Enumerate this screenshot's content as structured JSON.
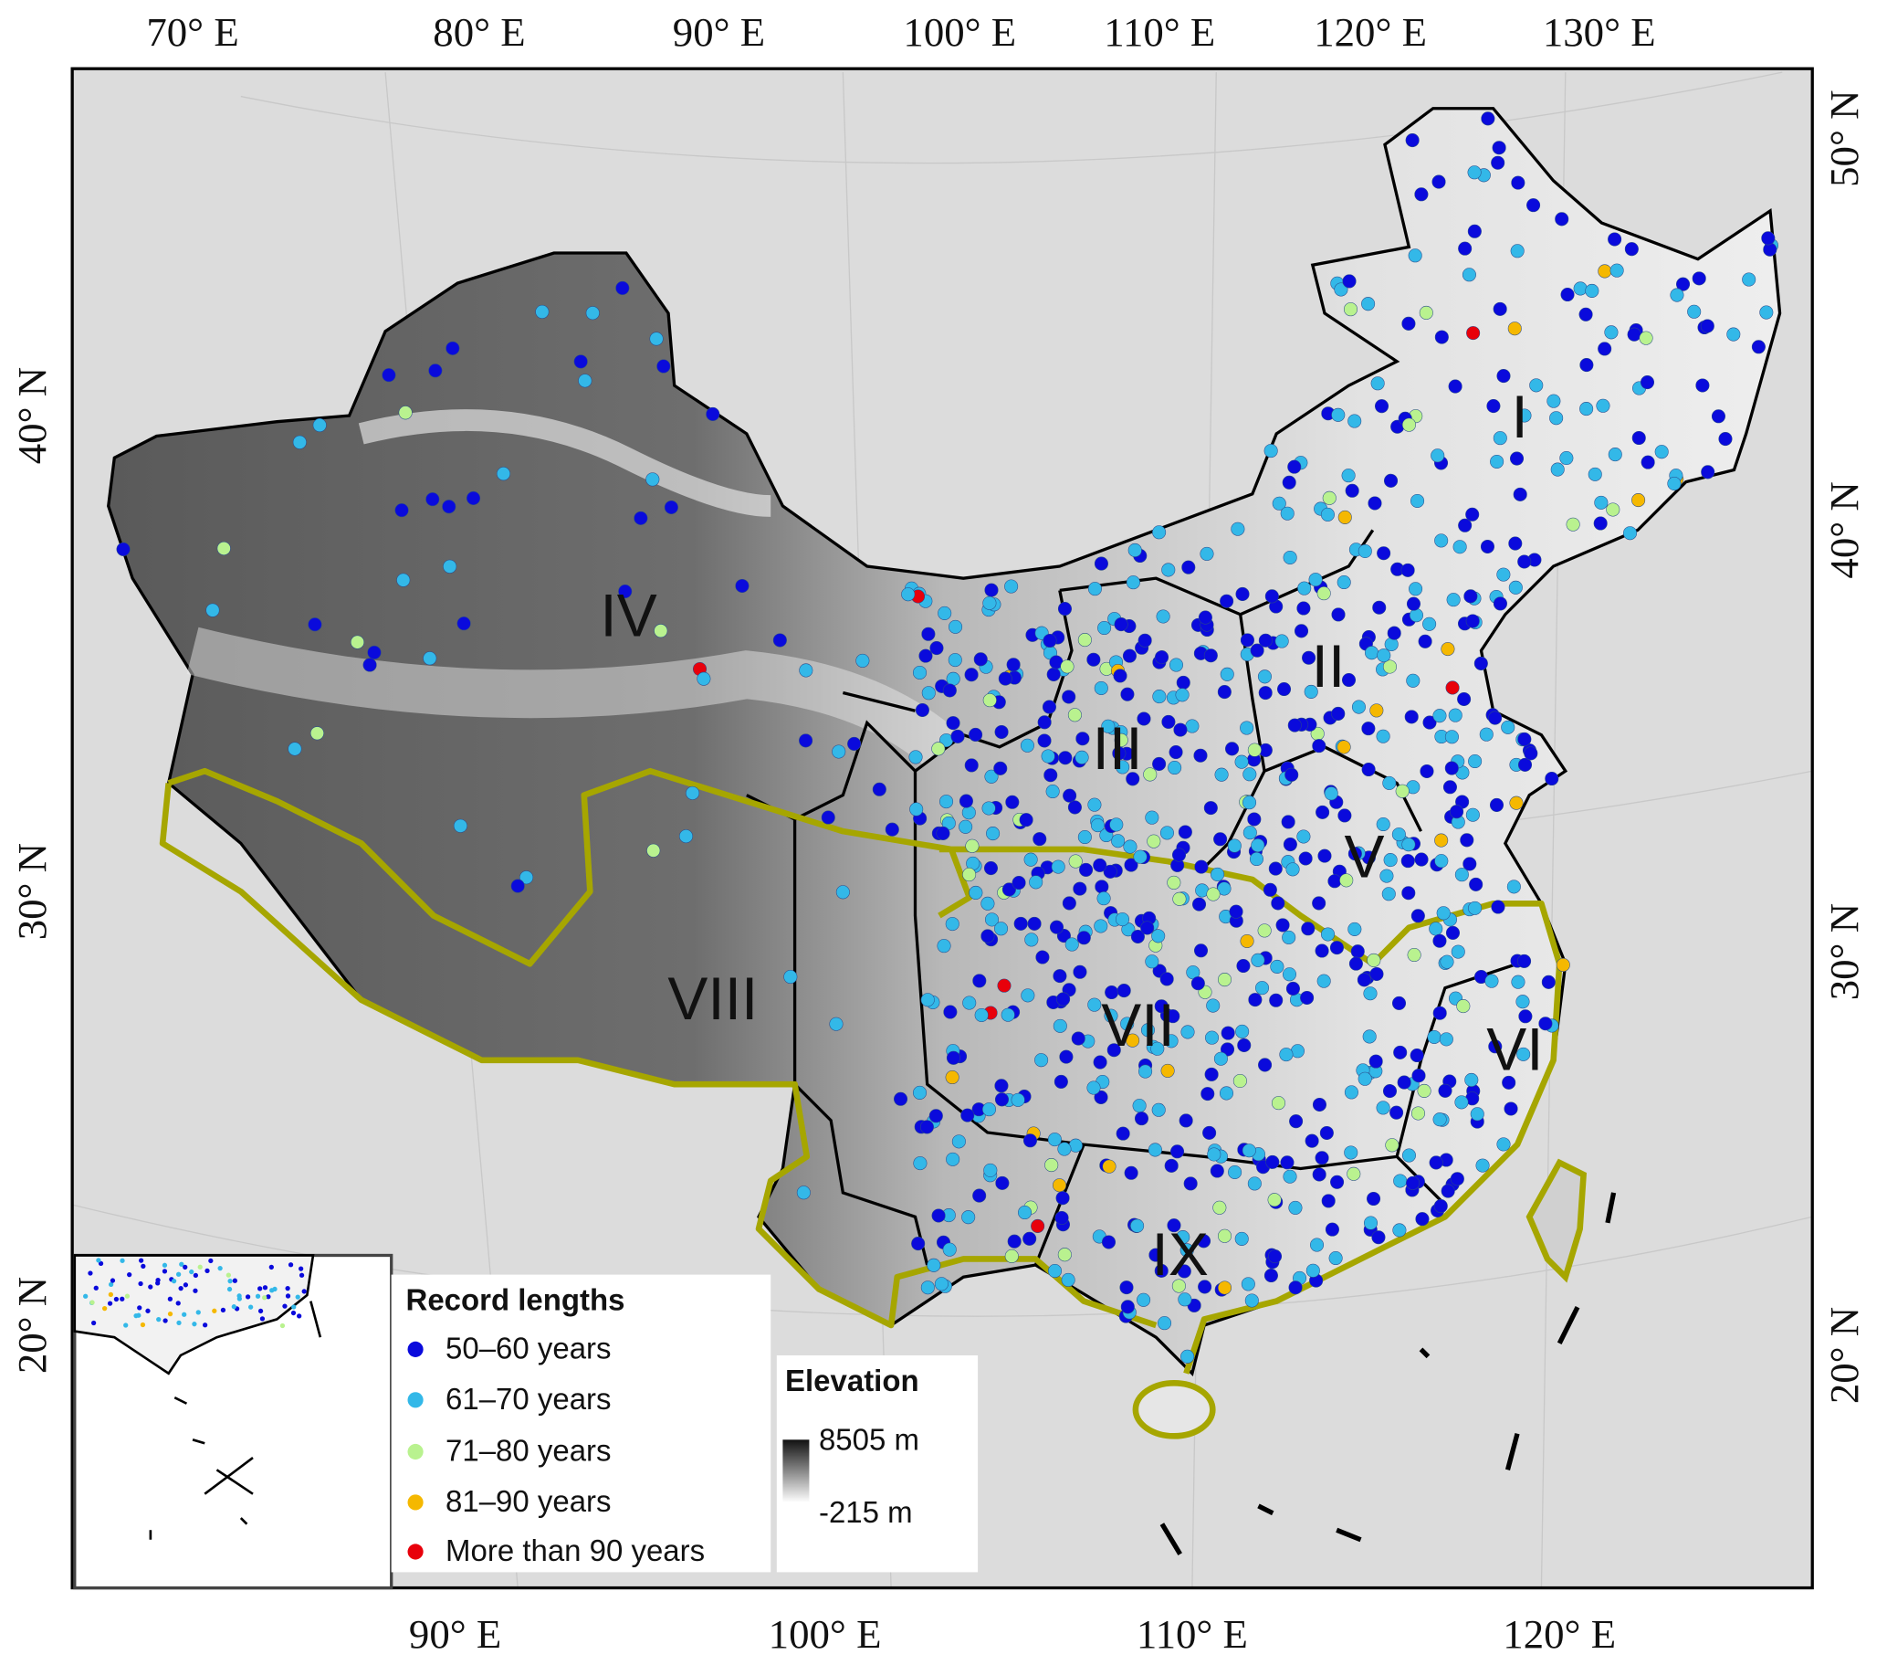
{
  "map": {
    "longitude_labels_top": [
      "70° E",
      "80° E",
      "90° E",
      "100° E",
      "110° E",
      "120° E",
      "130° E"
    ],
    "longitude_labels_bottom": [
      "90° E",
      "100° E",
      "110° E",
      "120° E"
    ],
    "latitude_labels_left": [
      "40° N",
      "30° N",
      "20° N"
    ],
    "latitude_labels_right": [
      "50° N",
      "40° N",
      "30° N",
      "20° N"
    ],
    "region_labels": [
      "I",
      "II",
      "III",
      "IV",
      "V",
      "VI",
      "VII",
      "VIII",
      "IX"
    ],
    "legend": {
      "title": "Record lengths",
      "items": [
        {
          "label": "50–60 years",
          "color": "#0a0adc"
        },
        {
          "label": "61–70 years",
          "color": "#33b8e8"
        },
        {
          "label": "71–80 years",
          "color": "#b9f28f"
        },
        {
          "label": "81–90 years",
          "color": "#f5b800"
        },
        {
          "label": "More than 90 years",
          "color": "#e8000b"
        }
      ]
    },
    "elevation": {
      "title": "Elevation",
      "max_label": "8505 m",
      "min_label": "-215 m"
    }
  }
}
